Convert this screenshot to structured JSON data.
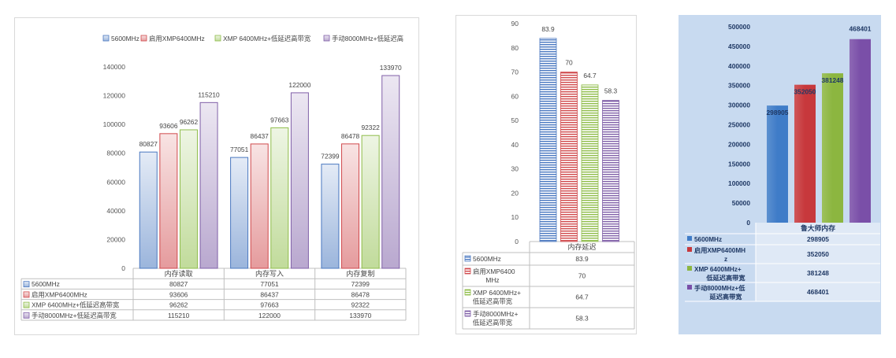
{
  "chart_data": [
    {
      "type": "bar",
      "categories": [
        "内存读取",
        "内存写入",
        "内存复制"
      ],
      "ylim": [
        0,
        140000
      ],
      "yticks": [
        0,
        20000,
        40000,
        60000,
        80000,
        100000,
        120000,
        140000
      ],
      "legend_position": "top",
      "has_data_table": true,
      "series": [
        {
          "name": "5600MHz",
          "values": [
            80827,
            77051,
            72399
          ],
          "color": "#4a78c0"
        },
        {
          "name": "启用XMP6400MHz",
          "values": [
            93606,
            86437,
            86478
          ],
          "color": "#d0494c"
        },
        {
          "name": "XMP 6400MHz+低延迟高带宽",
          "values": [
            96262,
            97663,
            92322
          ],
          "color": "#8fbd4a"
        },
        {
          "name": "手动8000MHz+低延迟高带宽",
          "values": [
            115210,
            122000,
            133970
          ],
          "color": "#8060a8"
        }
      ],
      "legend_labels": [
        "5600MHz",
        "启用XMP6400MHz",
        "XMP 6400MHz+低延迟高带宽",
        "手动8000MHz+低延迟高"
      ]
    },
    {
      "type": "bar",
      "categories": [
        "内存延迟"
      ],
      "ylim": [
        0,
        90
      ],
      "yticks": [
        0,
        10,
        20,
        30,
        40,
        50,
        60,
        70,
        80,
        90
      ],
      "has_data_table": true,
      "series": [
        {
          "name": "5600MHz",
          "values": [
            83.9
          ],
          "color": "#4a78c0"
        },
        {
          "name": "启用XMP6400MHz",
          "values": [
            70
          ],
          "color": "#d0494c"
        },
        {
          "name": "XMP 6400MHz+低延迟高带宽",
          "values": [
            64.7
          ],
          "color": "#8fbd4a"
        },
        {
          "name": "手动8000MHz+低延迟高带宽",
          "values": [
            58.3
          ],
          "color": "#8060a8"
        }
      ],
      "table_labels": [
        [
          "5600MHz"
        ],
        [
          "启用XMP6400",
          "MHz"
        ],
        [
          "XMP 6400MHz+",
          "低延迟高带宽"
        ],
        [
          "手动8000MHz+",
          "低延迟高带宽"
        ]
      ]
    },
    {
      "type": "bar",
      "categories": [
        "鲁大师内存"
      ],
      "ylim": [
        0,
        500000
      ],
      "yticks": [
        0,
        50000,
        100000,
        150000,
        200000,
        250000,
        300000,
        350000,
        400000,
        450000,
        500000
      ],
      "has_data_table": true,
      "series": [
        {
          "name": "5600MHz",
          "values": [
            298905
          ],
          "color": "#3f7cc8"
        },
        {
          "name": "启用XMP6400MHz",
          "values": [
            352050
          ],
          "color": "#c7383c"
        },
        {
          "name": "XMP 6400MHz+低延迟高带宽",
          "values": [
            381248
          ],
          "color": "#8cb640"
        },
        {
          "name": "手动8000MHz+低延迟高带宽",
          "values": [
            468401
          ],
          "color": "#7a4fa8"
        }
      ],
      "table_labels": [
        [
          "5600MHz"
        ],
        [
          "启用XMP6400MH",
          "z"
        ],
        [
          "XMP 6400MHz+",
          "低延迟高带宽"
        ],
        [
          "手动8000MHz+低",
          "延迟高带宽"
        ]
      ]
    }
  ]
}
